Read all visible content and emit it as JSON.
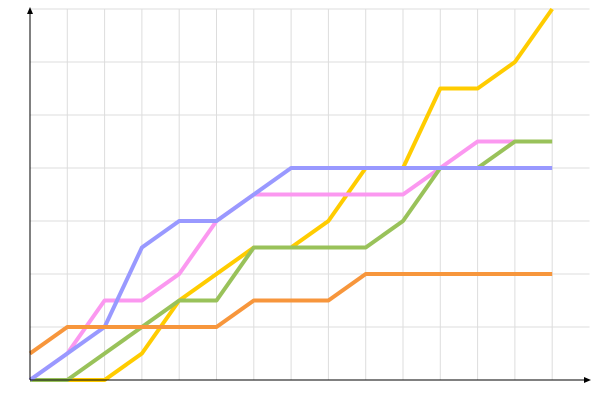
{
  "chart_data": {
    "type": "line",
    "x": [
      0,
      1,
      2,
      3,
      4,
      5,
      6,
      7,
      8,
      9,
      10,
      11,
      12,
      13,
      14
    ],
    "xlim": [
      0,
      15
    ],
    "xticks": [
      0,
      1,
      2,
      3,
      4,
      5,
      6,
      7,
      8,
      9,
      10,
      11,
      12,
      13,
      14
    ],
    "ylim": [
      0,
      7
    ],
    "yticks": [
      0,
      1,
      2,
      3,
      4,
      5,
      6,
      7
    ],
    "grid": true,
    "series": [
      {
        "color": "#ffcc00",
        "values": [
          0,
          0,
          0,
          0.5,
          1.5,
          2,
          2.5,
          2.5,
          3,
          4,
          4,
          5.5,
          5.5,
          6,
          7
        ]
      },
      {
        "color": "#fb98f0",
        "values": [
          0,
          0.5,
          1.5,
          1.5,
          2,
          3,
          3.5,
          3.5,
          3.5,
          3.5,
          3.5,
          4,
          4.5,
          4.5,
          null
        ]
      },
      {
        "color": "#99c25a",
        "values": [
          0,
          0,
          0.5,
          1,
          1.5,
          1.5,
          2.5,
          2.5,
          2.5,
          2.5,
          3,
          4,
          4,
          4.5,
          4.5
        ]
      },
      {
        "color": "#9999ff",
        "values": [
          0,
          0.5,
          1,
          2.5,
          3,
          3,
          3.5,
          4,
          4,
          4,
          4,
          4,
          4,
          4,
          4
        ]
      },
      {
        "color": "#f7963c",
        "values": [
          0.5,
          1,
          1,
          1,
          1,
          1,
          1.5,
          1.5,
          1.5,
          2,
          2,
          2,
          2,
          2,
          2
        ]
      }
    ]
  }
}
